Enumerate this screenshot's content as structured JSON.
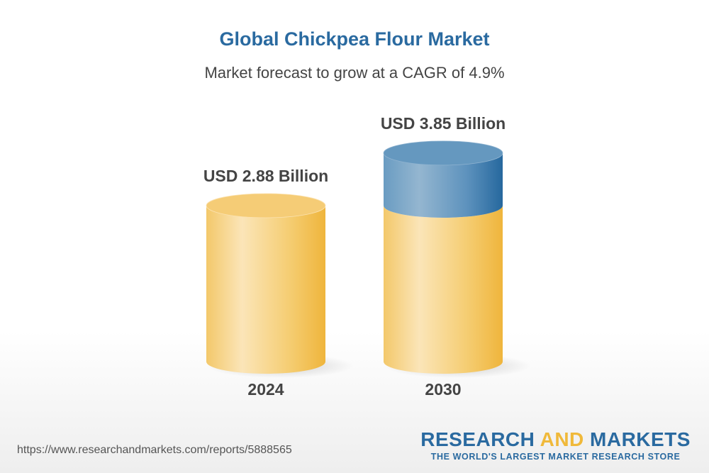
{
  "chart_data": {
    "type": "bar",
    "style": "3d-cylinder",
    "title": "Global Chickpea Flour Market",
    "subtitle": "Market forecast to grow at a CAGR of 4.9%",
    "categories": [
      "2024",
      "2030"
    ],
    "values": [
      2.88,
      3.85
    ],
    "data_labels": [
      "USD 2.88 Billion",
      "USD 3.85 Billion"
    ],
    "unit": "USD Billion",
    "colors": {
      "base": "#f2bd48",
      "growth": "#2a6aa0"
    },
    "grid": false
  },
  "footer": {
    "url": "https://www.researchandmarkets.com/reports/5888565",
    "logo_part1": "RESEARCH ",
    "logo_part2": "AND",
    "logo_part3": " MARKETS",
    "tagline": "THE WORLD'S LARGEST MARKET RESEARCH STORE"
  }
}
